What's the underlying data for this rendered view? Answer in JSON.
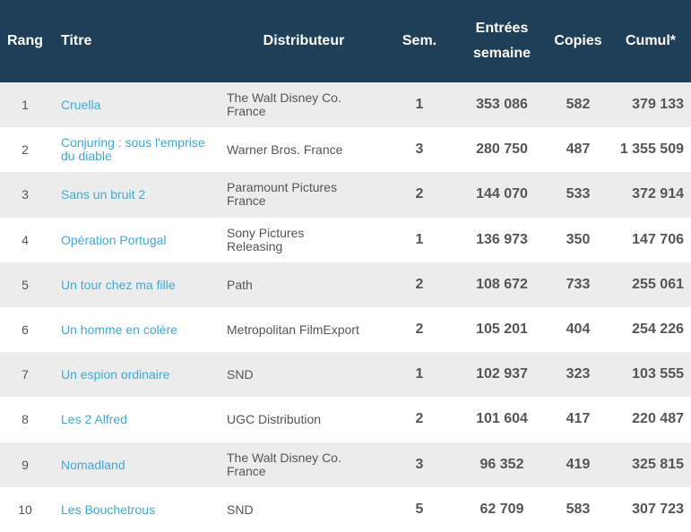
{
  "table": {
    "headers": {
      "rang": "Rang",
      "titre": "Titre",
      "distributeur": "Distributeur",
      "sem": "Sem.",
      "entrees_line1": "Entrées",
      "entrees_line2": "semaine",
      "copies": "Copies",
      "cumul": "Cumul*"
    },
    "rows": [
      {
        "rang": "1",
        "titre": "Cruella",
        "distributeur": "The Walt Disney Co. France",
        "sem": "1",
        "entrees": "353 086",
        "copies": "582",
        "cumul": "379 133"
      },
      {
        "rang": "2",
        "titre": "Conjuring : sous l'emprise du diable",
        "distributeur": "Warner Bros. France",
        "sem": "3",
        "entrees": "280 750",
        "copies": "487",
        "cumul": "1 355 509"
      },
      {
        "rang": "3",
        "titre": "Sans un bruit 2",
        "distributeur": "Paramount Pictures France",
        "sem": "2",
        "entrees": "144 070",
        "copies": "533",
        "cumul": "372 914"
      },
      {
        "rang": "4",
        "titre": "Opération Portugal",
        "distributeur": "Sony Pictures Releasing",
        "sem": "1",
        "entrees": "136 973",
        "copies": "350",
        "cumul": "147 706"
      },
      {
        "rang": "5",
        "titre": "Un tour chez ma fille",
        "distributeur": "Path",
        "sem": "2",
        "entrees": "108 672",
        "copies": "733",
        "cumul": "255 061"
      },
      {
        "rang": "6",
        "titre": "Un homme en colère",
        "distributeur": "Metropolitan FilmExport",
        "sem": "2",
        "entrees": "105 201",
        "copies": "404",
        "cumul": "254 226"
      },
      {
        "rang": "7",
        "titre": "Un espion ordinaire",
        "distributeur": "SND",
        "sem": "1",
        "entrees": "102 937",
        "copies": "323",
        "cumul": "103 555"
      },
      {
        "rang": "8",
        "titre": "Les 2 Alfred",
        "distributeur": "UGC Distribution",
        "sem": "2",
        "entrees": "101 604",
        "copies": "417",
        "cumul": "220 487"
      },
      {
        "rang": "9",
        "titre": "Nomadland",
        "distributeur": "The Walt Disney Co. France",
        "sem": "3",
        "entrees": "96 352",
        "copies": "419",
        "cumul": "325 815"
      },
      {
        "rang": "10",
        "titre": "Les Bouchetrous",
        "distributeur": "SND",
        "sem": "5",
        "entrees": "62 709",
        "copies": "583",
        "cumul": "307 723"
      }
    ]
  },
  "colors": {
    "header_bg": "#1e3f57",
    "header_text": "#ffffff",
    "row_alt": "#ececec",
    "link": "#3fa9d6",
    "text": "#555555"
  }
}
